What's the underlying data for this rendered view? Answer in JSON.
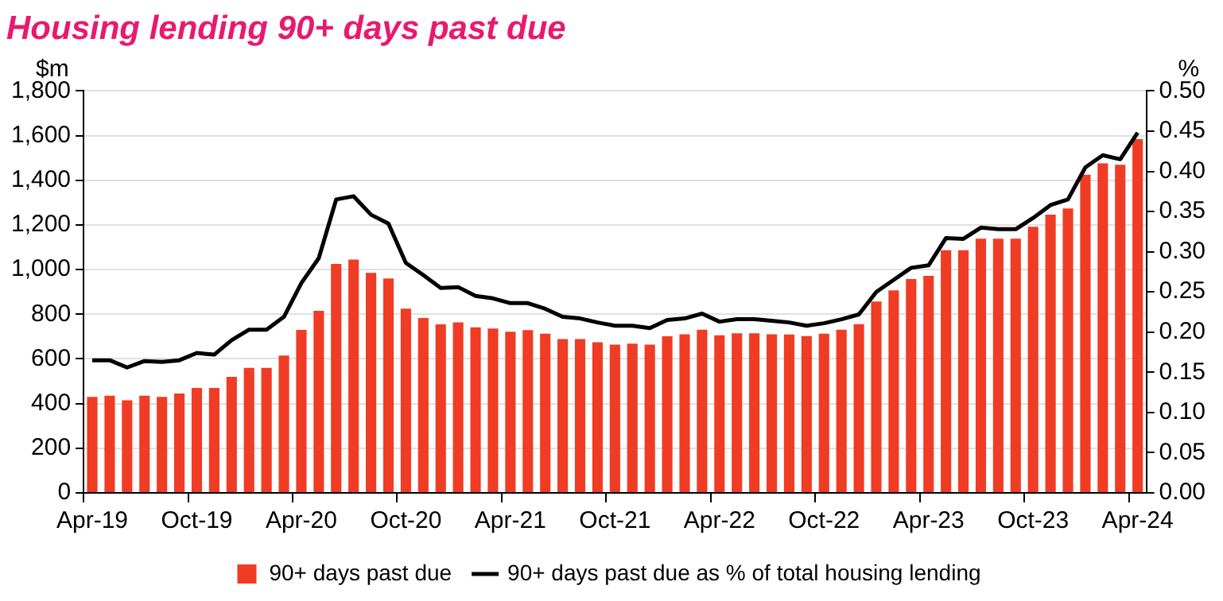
{
  "chart_data": {
    "type": "bar",
    "title": "Housing lending 90+ days past due",
    "ylabel": "$m",
    "y2label": "%",
    "categories": [
      "Apr-19",
      null,
      null,
      null,
      null,
      null,
      "Oct-19",
      null,
      null,
      null,
      null,
      null,
      "Apr-20",
      null,
      null,
      null,
      null,
      null,
      "Oct-20",
      null,
      null,
      null,
      null,
      null,
      "Apr-21",
      null,
      null,
      null,
      null,
      null,
      "Oct-21",
      null,
      null,
      null,
      null,
      null,
      "Apr-22",
      null,
      null,
      null,
      null,
      null,
      "Oct-22",
      null,
      null,
      null,
      null,
      null,
      "Apr-23",
      null,
      null,
      null,
      null,
      null,
      "Oct-23",
      null,
      null,
      null,
      null,
      null,
      "Apr-24"
    ],
    "series": [
      {
        "name": "90+ days past due",
        "color": "#f03c24",
        "values": [
          430,
          435,
          415,
          435,
          430,
          445,
          470,
          470,
          520,
          560,
          560,
          615,
          730,
          815,
          1025,
          1045,
          985,
          960,
          825,
          783,
          755,
          764,
          741,
          736,
          722,
          729,
          713,
          689,
          689,
          675,
          664,
          668,
          664,
          701,
          710,
          731,
          706,
          715,
          715,
          710,
          709,
          702,
          713,
          731,
          756,
          857,
          907,
          958,
          972,
          1087,
          1087,
          1138,
          1138,
          1138,
          1192,
          1246,
          1274,
          1425,
          1476,
          1469,
          1584
        ]
      },
      {
        "name": "90+ days past due as % of total housing lending",
        "type": "line",
        "axis": "y2",
        "color": "#000000",
        "marker": "none",
        "values": [
          0.165,
          0.165,
          0.156,
          0.164,
          0.163,
          0.165,
          0.174,
          0.172,
          0.19,
          0.203,
          0.203,
          0.219,
          0.261,
          0.292,
          0.365,
          0.369,
          0.346,
          0.335,
          0.286,
          0.271,
          0.255,
          0.256,
          0.245,
          0.242,
          0.236,
          0.236,
          0.229,
          0.219,
          0.217,
          0.212,
          0.208,
          0.208,
          0.205,
          0.215,
          0.217,
          0.223,
          0.213,
          0.216,
          0.216,
          0.214,
          0.212,
          0.208,
          0.211,
          0.216,
          0.222,
          0.25,
          0.265,
          0.28,
          0.283,
          0.317,
          0.316,
          0.33,
          0.328,
          0.328,
          0.342,
          0.358,
          0.365,
          0.405,
          0.42,
          0.415,
          0.448
        ]
      }
    ],
    "ylim": [
      0,
      1800
    ],
    "yticks": [
      {
        "value": 0,
        "label": "0"
      },
      {
        "value": 200,
        "label": "200"
      },
      {
        "value": 400,
        "label": "400"
      },
      {
        "value": 600,
        "label": "600"
      },
      {
        "value": 800,
        "label": "800"
      },
      {
        "value": 1000,
        "label": "1,000"
      },
      {
        "value": 1200,
        "label": "1,200"
      },
      {
        "value": 1400,
        "label": "1,400"
      },
      {
        "value": 1600,
        "label": "1,600"
      },
      {
        "value": 1800,
        "label": "1,800"
      }
    ],
    "y2lim": [
      0,
      0.5
    ],
    "y2ticks": [
      {
        "value": 0,
        "label": "0.00"
      },
      {
        "value": 0.05,
        "label": "0.05"
      },
      {
        "value": 0.1,
        "label": "0.10"
      },
      {
        "value": 0.15,
        "label": "0.15"
      },
      {
        "value": 0.2,
        "label": "0.20"
      },
      {
        "value": 0.25,
        "label": "0.25"
      },
      {
        "value": 0.3,
        "label": "0.30"
      },
      {
        "value": 0.35,
        "label": "0.35"
      },
      {
        "value": 0.4,
        "label": "0.40"
      },
      {
        "value": 0.45,
        "label": "0.45"
      },
      {
        "value": 0.5,
        "label": "0.50"
      }
    ],
    "grid": "y",
    "legend": "bottom"
  }
}
